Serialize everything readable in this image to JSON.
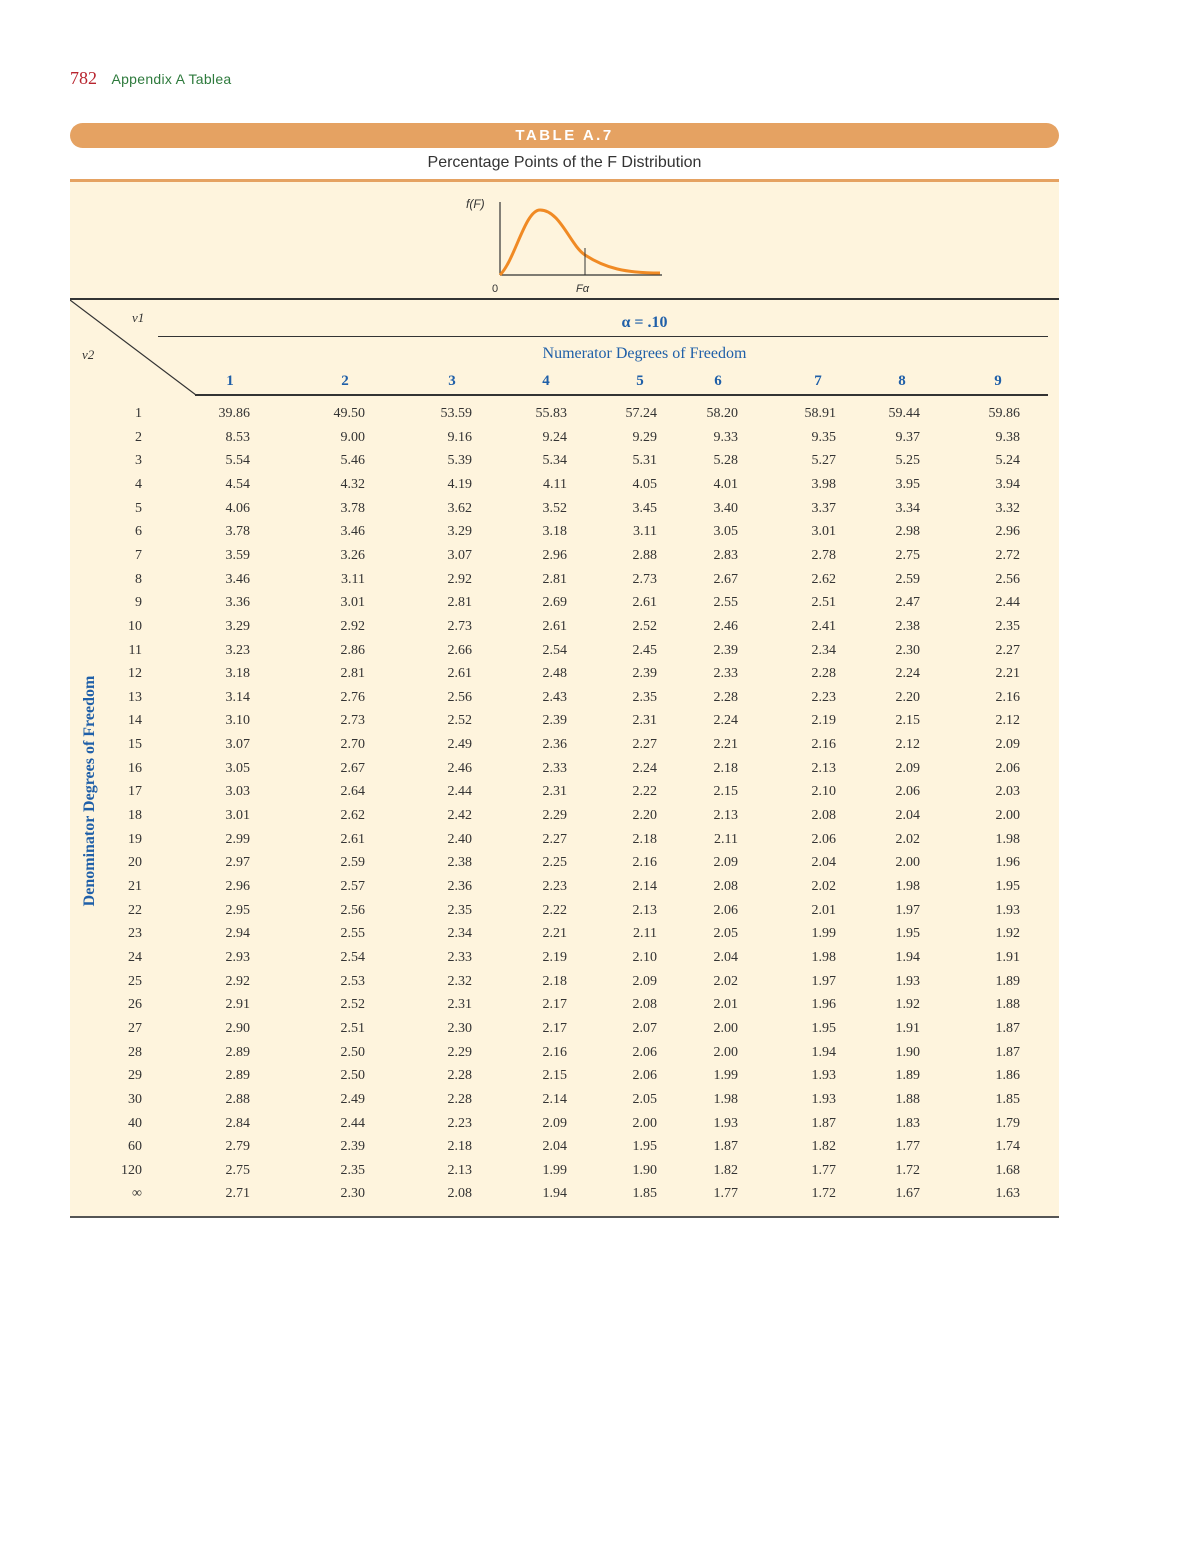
{
  "running_head": {
    "page_number": "782",
    "title": "Appendix A   Tablea"
  },
  "table": {
    "label": "TABLE A.7",
    "caption": "Percentage Points of the F Distribution",
    "graph": {
      "y_label": "f(F)",
      "origin_label": "0",
      "x_mark_label": "Fα"
    },
    "nu1_symbol": "ν1",
    "nu2_symbol": "ν2",
    "alpha_label": "α = .10",
    "numerator_label": "Numerator Degrees of Freedom",
    "denominator_label": "Denominator Degrees of Freedom",
    "columns": [
      "1",
      "2",
      "3",
      "4",
      "5",
      "6",
      "7",
      "8",
      "9"
    ],
    "rows": [
      {
        "df": "1",
        "values": [
          "39.86",
          "49.50",
          "53.59",
          "55.83",
          "57.24",
          "58.20",
          "58.91",
          "59.44",
          "59.86"
        ]
      },
      {
        "df": "2",
        "values": [
          "8.53",
          "9.00",
          "9.16",
          "9.24",
          "9.29",
          "9.33",
          "9.35",
          "9.37",
          "9.38"
        ]
      },
      {
        "df": "3",
        "values": [
          "5.54",
          "5.46",
          "5.39",
          "5.34",
          "5.31",
          "5.28",
          "5.27",
          "5.25",
          "5.24"
        ]
      },
      {
        "df": "4",
        "values": [
          "4.54",
          "4.32",
          "4.19",
          "4.11",
          "4.05",
          "4.01",
          "3.98",
          "3.95",
          "3.94"
        ]
      },
      {
        "df": "5",
        "values": [
          "4.06",
          "3.78",
          "3.62",
          "3.52",
          "3.45",
          "3.40",
          "3.37",
          "3.34",
          "3.32"
        ]
      },
      {
        "df": "6",
        "values": [
          "3.78",
          "3.46",
          "3.29",
          "3.18",
          "3.11",
          "3.05",
          "3.01",
          "2.98",
          "2.96"
        ]
      },
      {
        "df": "7",
        "values": [
          "3.59",
          "3.26",
          "3.07",
          "2.96",
          "2.88",
          "2.83",
          "2.78",
          "2.75",
          "2.72"
        ]
      },
      {
        "df": "8",
        "values": [
          "3.46",
          "3.11",
          "2.92",
          "2.81",
          "2.73",
          "2.67",
          "2.62",
          "2.59",
          "2.56"
        ]
      },
      {
        "df": "9",
        "values": [
          "3.36",
          "3.01",
          "2.81",
          "2.69",
          "2.61",
          "2.55",
          "2.51",
          "2.47",
          "2.44"
        ]
      },
      {
        "df": "10",
        "values": [
          "3.29",
          "2.92",
          "2.73",
          "2.61",
          "2.52",
          "2.46",
          "2.41",
          "2.38",
          "2.35"
        ]
      },
      {
        "df": "11",
        "values": [
          "3.23",
          "2.86",
          "2.66",
          "2.54",
          "2.45",
          "2.39",
          "2.34",
          "2.30",
          "2.27"
        ]
      },
      {
        "df": "12",
        "values": [
          "3.18",
          "2.81",
          "2.61",
          "2.48",
          "2.39",
          "2.33",
          "2.28",
          "2.24",
          "2.21"
        ]
      },
      {
        "df": "13",
        "values": [
          "3.14",
          "2.76",
          "2.56",
          "2.43",
          "2.35",
          "2.28",
          "2.23",
          "2.20",
          "2.16"
        ]
      },
      {
        "df": "14",
        "values": [
          "3.10",
          "2.73",
          "2.52",
          "2.39",
          "2.31",
          "2.24",
          "2.19",
          "2.15",
          "2.12"
        ]
      },
      {
        "df": "15",
        "values": [
          "3.07",
          "2.70",
          "2.49",
          "2.36",
          "2.27",
          "2.21",
          "2.16",
          "2.12",
          "2.09"
        ]
      },
      {
        "df": "16",
        "values": [
          "3.05",
          "2.67",
          "2.46",
          "2.33",
          "2.24",
          "2.18",
          "2.13",
          "2.09",
          "2.06"
        ]
      },
      {
        "df": "17",
        "values": [
          "3.03",
          "2.64",
          "2.44",
          "2.31",
          "2.22",
          "2.15",
          "2.10",
          "2.06",
          "2.03"
        ]
      },
      {
        "df": "18",
        "values": [
          "3.01",
          "2.62",
          "2.42",
          "2.29",
          "2.20",
          "2.13",
          "2.08",
          "2.04",
          "2.00"
        ]
      },
      {
        "df": "19",
        "values": [
          "2.99",
          "2.61",
          "2.40",
          "2.27",
          "2.18",
          "2.11",
          "2.06",
          "2.02",
          "1.98"
        ]
      },
      {
        "df": "20",
        "values": [
          "2.97",
          "2.59",
          "2.38",
          "2.25",
          "2.16",
          "2.09",
          "2.04",
          "2.00",
          "1.96"
        ]
      },
      {
        "df": "21",
        "values": [
          "2.96",
          "2.57",
          "2.36",
          "2.23",
          "2.14",
          "2.08",
          "2.02",
          "1.98",
          "1.95"
        ]
      },
      {
        "df": "22",
        "values": [
          "2.95",
          "2.56",
          "2.35",
          "2.22",
          "2.13",
          "2.06",
          "2.01",
          "1.97",
          "1.93"
        ]
      },
      {
        "df": "23",
        "values": [
          "2.94",
          "2.55",
          "2.34",
          "2.21",
          "2.11",
          "2.05",
          "1.99",
          "1.95",
          "1.92"
        ]
      },
      {
        "df": "24",
        "values": [
          "2.93",
          "2.54",
          "2.33",
          "2.19",
          "2.10",
          "2.04",
          "1.98",
          "1.94",
          "1.91"
        ]
      },
      {
        "df": "25",
        "values": [
          "2.92",
          "2.53",
          "2.32",
          "2.18",
          "2.09",
          "2.02",
          "1.97",
          "1.93",
          "1.89"
        ]
      },
      {
        "df": "26",
        "values": [
          "2.91",
          "2.52",
          "2.31",
          "2.17",
          "2.08",
          "2.01",
          "1.96",
          "1.92",
          "1.88"
        ]
      },
      {
        "df": "27",
        "values": [
          "2.90",
          "2.51",
          "2.30",
          "2.17",
          "2.07",
          "2.00",
          "1.95",
          "1.91",
          "1.87"
        ]
      },
      {
        "df": "28",
        "values": [
          "2.89",
          "2.50",
          "2.29",
          "2.16",
          "2.06",
          "2.00",
          "1.94",
          "1.90",
          "1.87"
        ]
      },
      {
        "df": "29",
        "values": [
          "2.89",
          "2.50",
          "2.28",
          "2.15",
          "2.06",
          "1.99",
          "1.93",
          "1.89",
          "1.86"
        ]
      },
      {
        "df": "30",
        "values": [
          "2.88",
          "2.49",
          "2.28",
          "2.14",
          "2.05",
          "1.98",
          "1.93",
          "1.88",
          "1.85"
        ]
      },
      {
        "df": "40",
        "values": [
          "2.84",
          "2.44",
          "2.23",
          "2.09",
          "2.00",
          "1.93",
          "1.87",
          "1.83",
          "1.79"
        ]
      },
      {
        "df": "60",
        "values": [
          "2.79",
          "2.39",
          "2.18",
          "2.04",
          "1.95",
          "1.87",
          "1.82",
          "1.77",
          "1.74"
        ]
      },
      {
        "df": "120",
        "values": [
          "2.75",
          "2.35",
          "2.13",
          "1.99",
          "1.90",
          "1.82",
          "1.77",
          "1.72",
          "1.68"
        ]
      },
      {
        "df": "∞",
        "values": [
          "2.71",
          "2.30",
          "2.08",
          "1.94",
          "1.85",
          "1.77",
          "1.72",
          "1.67",
          "1.63"
        ]
      }
    ]
  },
  "colors": {
    "banner": "#e5a262",
    "panel": "#fef4dd",
    "accent_blue": "#1f5fa8",
    "curve": "#f08a24",
    "page_number": "#b8242e",
    "head_title": "#2d7a3c"
  }
}
